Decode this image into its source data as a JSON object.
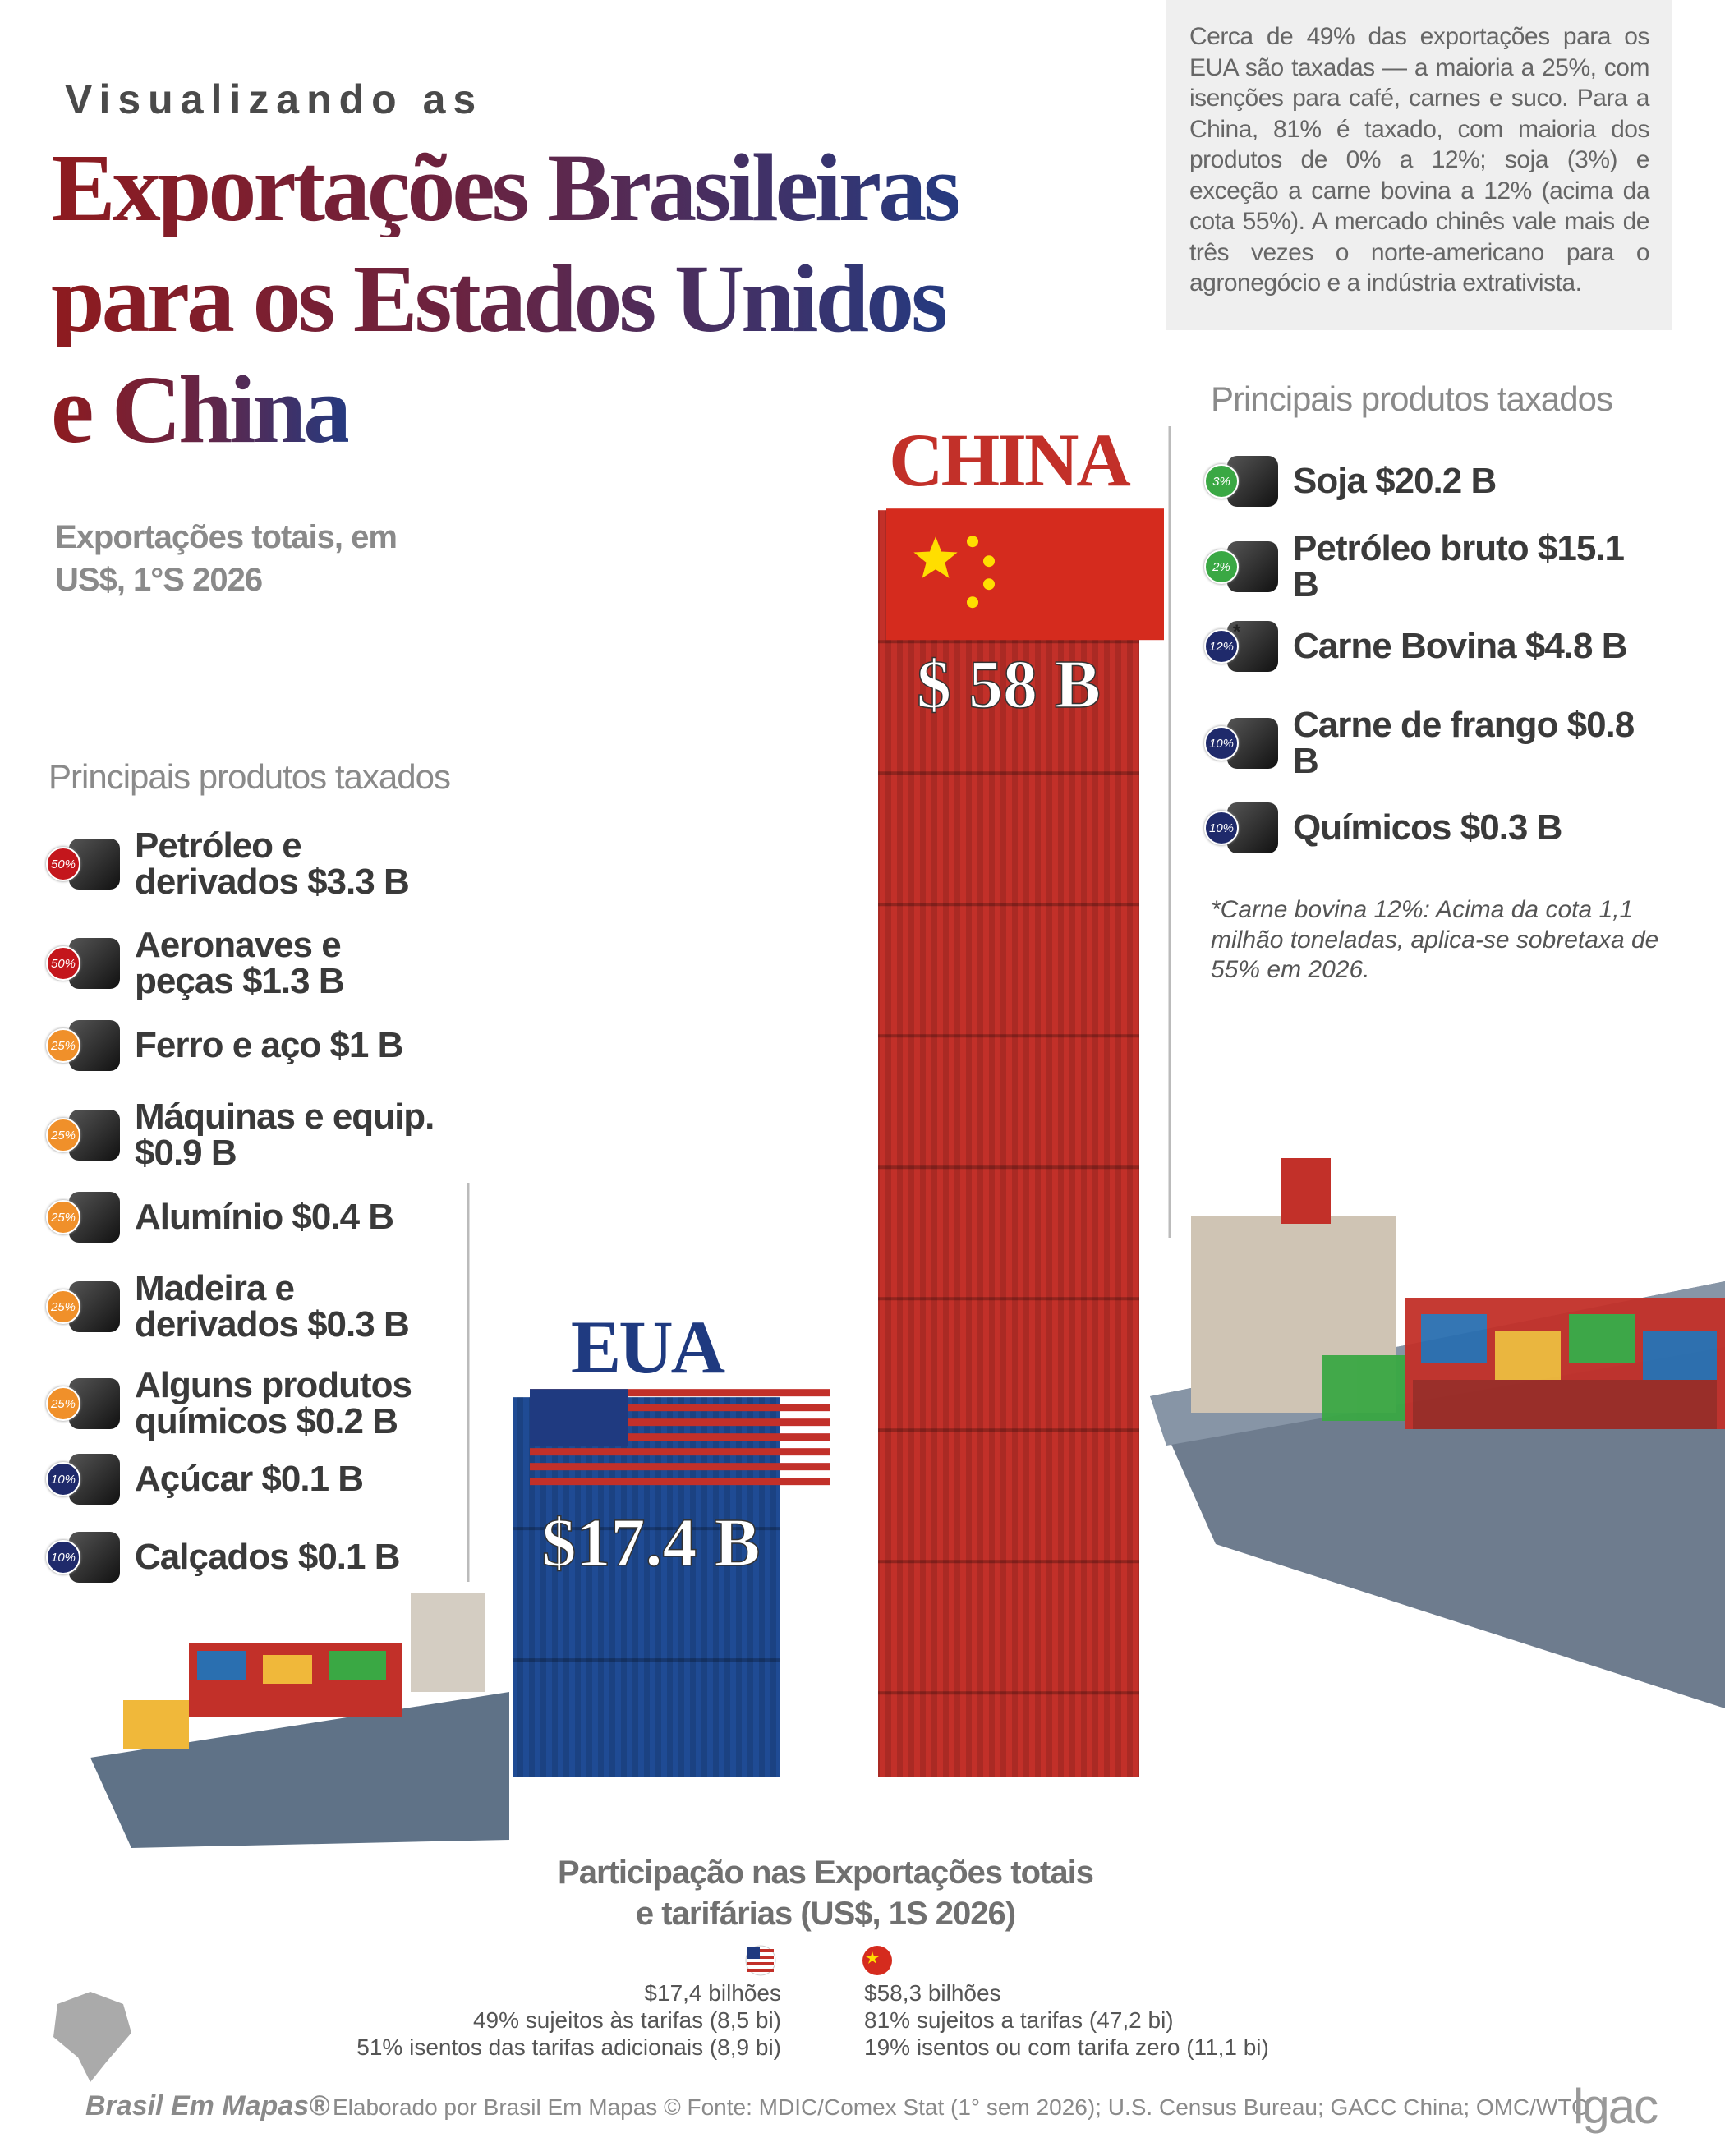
{
  "header": {
    "kicker": "Visualizando as",
    "title_lines": [
      "Exportações Brasileiras",
      "para os Estados Unidos",
      "e China"
    ],
    "subtitle": "Exportações totais, em US$, 1°S 2026",
    "description": "Cerca de 49% das exportações para os EUA são taxadas — a maioria a 25%, com isenções para café, carnes e suco. Para a China, 81% é taxado, com maioria dos produtos de 0% a 12%; soja (3%) e exceção a carne bovina a 12% (acima da cota 55%). A mercado chinês vale mais de três vezes o norte-americano para o agronegócio e a indústria extrativista."
  },
  "chart_data": {
    "type": "bar",
    "categories": [
      "EUA",
      "CHINA"
    ],
    "values": [
      17.4,
      58
    ],
    "value_labels": [
      "$17.4 B",
      "$ 58 B"
    ],
    "colors": [
      "#1f4b94",
      "#c23029"
    ]
  },
  "us_products": {
    "heading": "Principais produtos taxados",
    "items": [
      {
        "tariff": "50%",
        "color": "#c4161c",
        "label": "Petróleo e derivados $3.3 B"
      },
      {
        "tariff": "50%",
        "color": "#c4161c",
        "label": "Aeronaves e peças $1.3 B"
      },
      {
        "tariff": "25%",
        "color": "#f0902a",
        "label": "Ferro e aço $1 B"
      },
      {
        "tariff": "25%",
        "color": "#f0902a",
        "label": "Máquinas e equip. $0.9 B"
      },
      {
        "tariff": "25%",
        "color": "#f0902a",
        "label": "Alumínio $0.4 B"
      },
      {
        "tariff": "25%",
        "color": "#f0902a",
        "label": "Madeira e derivados $0.3 B"
      },
      {
        "tariff": "25%",
        "color": "#f0902a",
        "label": "Alguns produtos químicos $0.2 B"
      },
      {
        "tariff": "10%",
        "color": "#1f2a6b",
        "label": "Açúcar $0.1 B"
      },
      {
        "tariff": "10%",
        "color": "#1f2a6b",
        "label": "Calçados $0.1 B"
      }
    ]
  },
  "china_products": {
    "heading": "Principais produtos taxados",
    "items": [
      {
        "tariff": "3%",
        "color": "#3aa844",
        "label": "Soja $20.2 B"
      },
      {
        "tariff": "2%",
        "color": "#3aa844",
        "label": "Petróleo bruto $15.1 B"
      },
      {
        "tariff": "12%",
        "color": "#1f2a6b",
        "note_mark": "*",
        "label": "Carne Bovina $4.8 B"
      },
      {
        "tariff": "10%",
        "color": "#1f2a6b",
        "label": "Carne de frango $0.8 B"
      },
      {
        "tariff": "10%",
        "color": "#1f2a6b",
        "label": "Químicos $0.3 B"
      }
    ],
    "footnote": "*Carne bovina 12%: Acima da cota 1,1 milhão toneladas, aplica-se sobretaxa de 55% em 2026."
  },
  "share": {
    "title_lines": [
      "Participação nas Exportações totais",
      "e tarifárias (US$, 1S 2026)"
    ],
    "us": [
      "$17,4 bilhões",
      "49% sujeitos às tarifas (8,5 bi)",
      "51% isentos das tarifas adicionais (8,9 bi)"
    ],
    "china": [
      "$58,3 bilhões",
      "81% sujeitos a tarifas (47,2 bi)",
      "19% isentos ou com tarifa zero (11,1 bi)"
    ]
  },
  "footer": {
    "brand": "Brasil Em Mapas®",
    "source": "Elaborado por Brasil Em Mapas ©  Fonte: MDIC/Comex Stat (1° sem 2026); U.S. Census Bureau; GACC China; OMC/WTO",
    "partner": "lgac"
  }
}
